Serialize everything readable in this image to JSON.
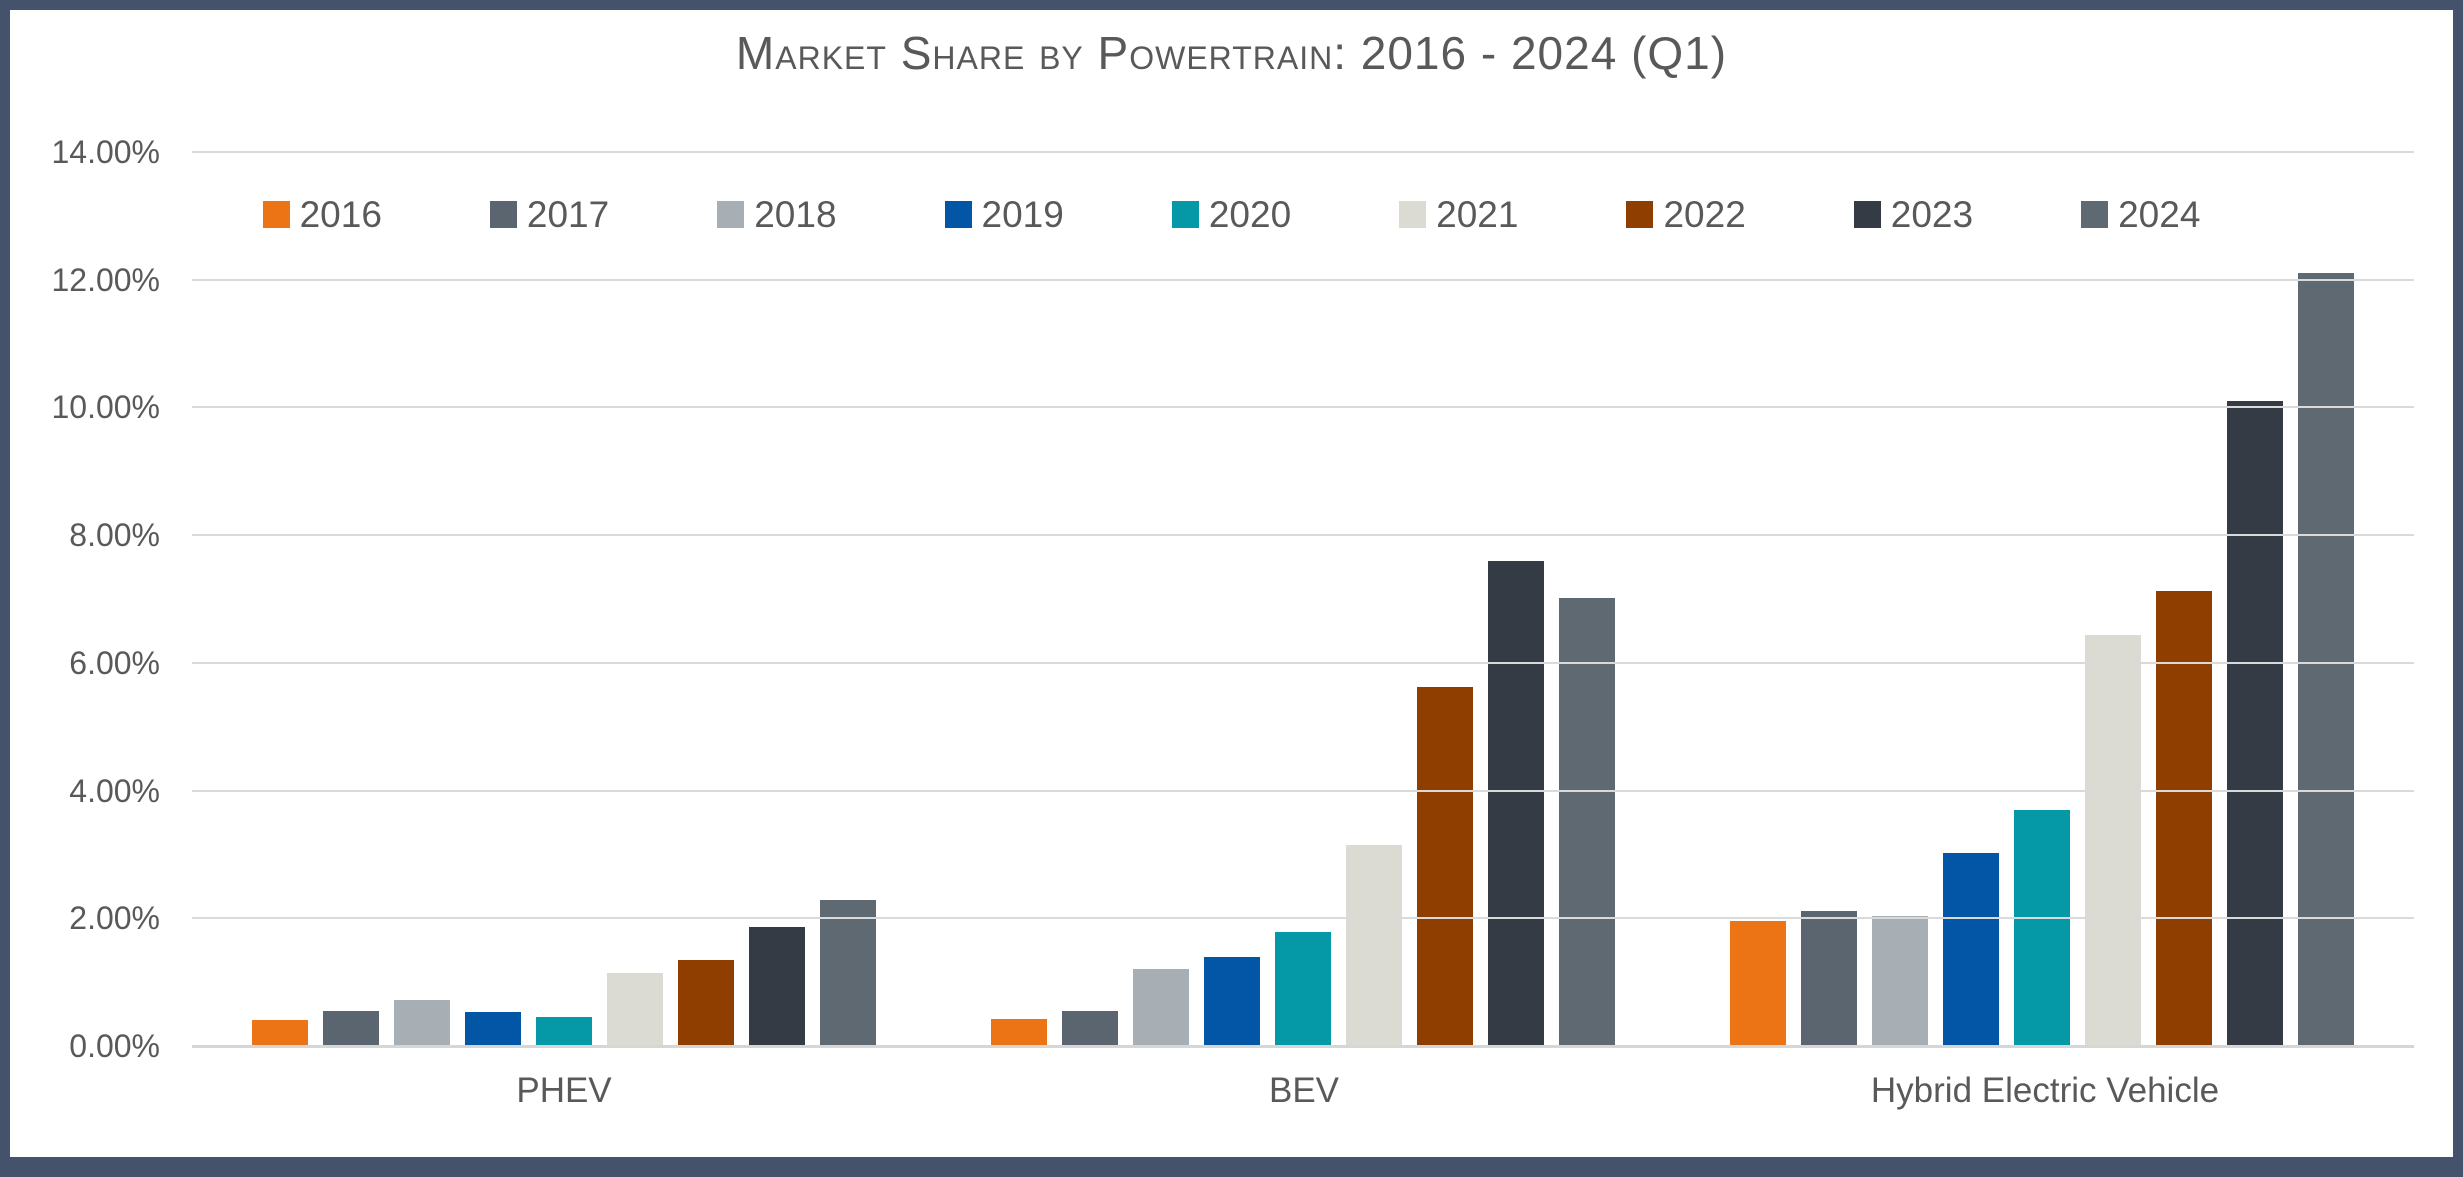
{
  "title": "Market Share by Powertrain: 2016 - 2024 (Q1)",
  "chart_data": {
    "type": "bar",
    "title": "Market Share by Powertrain: 2016 - 2024 (Q1)",
    "categories": [
      "PHEV",
      "BEV",
      "Hybrid Electric Vehicle"
    ],
    "series": [
      {
        "name": "2016",
        "color": "#EC7414",
        "values": [
          0.41,
          0.43,
          1.95
        ]
      },
      {
        "name": "2017",
        "color": "#5A656F",
        "values": [
          0.55,
          0.55,
          2.12
        ]
      },
      {
        "name": "2018",
        "color": "#A7AEB4",
        "values": [
          0.72,
          1.2,
          2.03
        ]
      },
      {
        "name": "2019",
        "color": "#0356A5",
        "values": [
          0.53,
          1.4,
          3.02
        ]
      },
      {
        "name": "2020",
        "color": "#0598A7",
        "values": [
          0.46,
          1.78,
          3.7
        ]
      },
      {
        "name": "2021",
        "color": "#DBDBD3",
        "values": [
          1.14,
          3.15,
          6.43
        ]
      },
      {
        "name": "2022",
        "color": "#8F3E00",
        "values": [
          1.35,
          5.62,
          7.12
        ]
      },
      {
        "name": "2023",
        "color": "#343B44",
        "values": [
          1.87,
          7.6,
          10.1
        ]
      },
      {
        "name": "2024",
        "color": "#5E6972",
        "values": [
          2.29,
          7.02,
          12.1
        ]
      }
    ],
    "xlabel": "",
    "ylabel": "",
    "ylim": [
      0,
      14
    ],
    "ytick_step": 2,
    "ytick_labels": [
      "0.00%",
      "2.00%",
      "4.00%",
      "6.00%",
      "8.00%",
      "10.00%",
      "12.00%",
      "14.00%"
    ],
    "grid": true,
    "legend_position": "top-center",
    "legend_entries": [
      "2016",
      "2017",
      "2018",
      "2019",
      "2020",
      "2021",
      "2022",
      "2023",
      "2024"
    ]
  },
  "colors": {
    "frame": "#45526B",
    "grid": "#DADADA",
    "axis_text": "#595959",
    "title_text": "#595959",
    "background": "#FFFFFF"
  }
}
